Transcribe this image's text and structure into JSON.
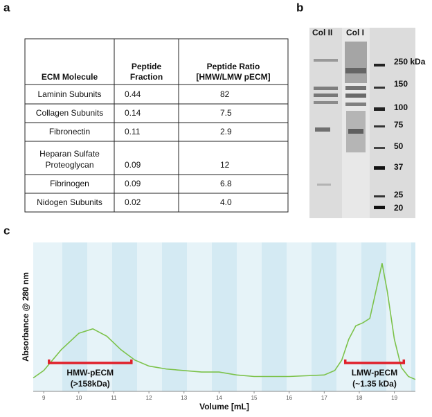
{
  "panel_labels": [
    "a",
    "b",
    "c"
  ],
  "table": {
    "header": [
      [
        "ECM Molecule"
      ],
      [
        "Peptide",
        "Fraction"
      ],
      [
        "Peptide Ratio",
        "[HMW/LMW pECM]"
      ]
    ],
    "rows": [
      [
        [
          "Laminin Subunits"
        ],
        "0.44",
        "82"
      ],
      [
        [
          "Collagen Subunits"
        ],
        "0.14",
        "7.5"
      ],
      [
        [
          "Fibronectin"
        ],
        "0.11",
        "2.9"
      ],
      [
        [
          "Heparan Sulfate",
          "Proteoglycan"
        ],
        "0.09",
        "12"
      ],
      [
        [
          "Fibrinogen"
        ],
        "0.09",
        "6.8"
      ],
      [
        [
          "Nidogen Subunits"
        ],
        "0.02",
        "4.0"
      ]
    ]
  },
  "gel": {
    "lanes": [
      "Col II",
      "Col I"
    ],
    "markers": [
      "250 kDa",
      "150",
      "100",
      "75",
      "50",
      "37",
      "25",
      "20"
    ]
  },
  "chart_data": {
    "type": "line",
    "x_label": "Volume [mL]",
    "y_label": "Absorbance @ 280 nm",
    "xlim": [
      8.7,
      19.6
    ],
    "ylim": [
      0,
      100
    ],
    "xticks": [
      9,
      10,
      11,
      12,
      13,
      14,
      15,
      16,
      17,
      18,
      19
    ],
    "x": [
      8.7,
      9.0,
      9.5,
      10.0,
      10.4,
      10.8,
      11.2,
      11.6,
      12.0,
      12.5,
      13.0,
      13.5,
      14.0,
      14.5,
      15.0,
      16.0,
      17.0,
      17.3,
      17.5,
      17.7,
      17.9,
      18.1,
      18.3,
      18.5,
      18.65,
      18.8,
      19.0,
      19.2,
      19.4,
      19.6
    ],
    "series": [
      {
        "color": "#7cc24a",
        "values": [
          9,
          14,
          28,
          39,
          42,
          37,
          28,
          21,
          17,
          15,
          14,
          13,
          13,
          11,
          10,
          10,
          11,
          14,
          21,
          35,
          44,
          46,
          49,
          70,
          86,
          67,
          35,
          16,
          10,
          8
        ]
      }
    ],
    "annotations": [
      {
        "lines": [
          "HMW-pECM",
          "(>158kDa)"
        ],
        "x_range": [
          9.15,
          11.5
        ],
        "color": "#e0202a"
      },
      {
        "lines": [
          "LMW-pECM",
          "(~1.35 kDa)"
        ],
        "x_range": [
          17.6,
          19.27
        ],
        "color": "#e0202a"
      }
    ]
  }
}
